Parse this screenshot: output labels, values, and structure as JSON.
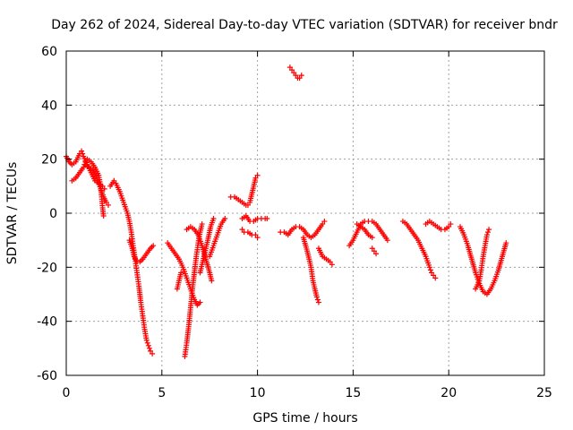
{
  "chart_data": {
    "type": "scatter",
    "title": "Day 262 of 2024, Sidereal Day-to-day VTEC variation (SDTVAR) for receiver bndr",
    "xlabel": "GPS time / hours",
    "ylabel": "SDTVAR / TECUs",
    "xlim": [
      0,
      25
    ],
    "ylim": [
      -60,
      60
    ],
    "xticks": [
      0,
      5,
      10,
      15,
      20,
      25
    ],
    "yticks": [
      -60,
      -40,
      -20,
      0,
      20,
      40,
      60
    ],
    "xtick_labels": [
      "0",
      "5",
      "10",
      "15",
      "20",
      "25"
    ],
    "ytick_labels": [
      "-60",
      "-40",
      "-20",
      "0",
      "20",
      "40",
      "60"
    ],
    "grid": true,
    "marker": "plus",
    "color": "#ff0000",
    "segments": [
      {
        "name": "arc-01",
        "points": [
          [
            0.0,
            21
          ],
          [
            0.15,
            19
          ],
          [
            0.3,
            18
          ],
          [
            0.5,
            19
          ],
          [
            0.7,
            22
          ],
          [
            0.8,
            23
          ],
          [
            0.9,
            21
          ],
          [
            1.1,
            18
          ],
          [
            1.3,
            15
          ],
          [
            1.5,
            12
          ],
          [
            1.7,
            11
          ],
          [
            1.9,
            10
          ],
          [
            2.0,
            9
          ]
        ]
      },
      {
        "name": "arc-02",
        "points": [
          [
            0.3,
            12
          ],
          [
            0.5,
            13
          ],
          [
            0.7,
            15
          ],
          [
            0.9,
            17
          ],
          [
            1.0,
            19
          ],
          [
            1.1,
            20
          ],
          [
            1.3,
            19
          ],
          [
            1.5,
            17
          ],
          [
            1.7,
            14
          ],
          [
            1.8,
            10
          ],
          [
            1.85,
            6
          ],
          [
            1.9,
            2
          ],
          [
            1.95,
            -1
          ]
        ]
      },
      {
        "name": "arc-03",
        "points": [
          [
            1.0,
            18
          ],
          [
            1.2,
            17
          ],
          [
            1.4,
            16
          ],
          [
            1.6,
            13
          ],
          [
            1.8,
            9
          ],
          [
            1.95,
            6
          ],
          [
            2.1,
            4
          ],
          [
            2.2,
            3
          ]
        ]
      },
      {
        "name": "arc-04",
        "points": [
          [
            2.3,
            10
          ],
          [
            2.5,
            12
          ],
          [
            2.6,
            11
          ],
          [
            2.8,
            8
          ],
          [
            3.0,
            4
          ],
          [
            3.2,
            0
          ],
          [
            3.3,
            -3
          ],
          [
            3.4,
            -7
          ],
          [
            3.5,
            -12
          ],
          [
            3.6,
            -17
          ],
          [
            3.7,
            -22
          ],
          [
            3.8,
            -27
          ],
          [
            3.9,
            -33
          ],
          [
            4.0,
            -38
          ],
          [
            4.1,
            -43
          ],
          [
            4.2,
            -47
          ],
          [
            4.3,
            -49
          ],
          [
            4.4,
            -51
          ],
          [
            4.5,
            -52
          ]
        ]
      },
      {
        "name": "arc-05",
        "points": [
          [
            3.3,
            -10
          ],
          [
            3.45,
            -13
          ],
          [
            3.55,
            -16
          ],
          [
            3.7,
            -18
          ],
          [
            3.85,
            -18
          ],
          [
            4.0,
            -17
          ],
          [
            4.2,
            -15
          ],
          [
            4.4,
            -13
          ],
          [
            4.55,
            -12
          ]
        ]
      },
      {
        "name": "arc-06",
        "points": [
          [
            5.3,
            -11
          ],
          [
            5.5,
            -13
          ],
          [
            5.7,
            -15
          ],
          [
            5.9,
            -17
          ],
          [
            6.1,
            -20
          ],
          [
            6.3,
            -24
          ],
          [
            6.5,
            -28
          ],
          [
            6.7,
            -32
          ],
          [
            6.85,
            -34
          ],
          [
            7.0,
            -33
          ]
        ]
      },
      {
        "name": "arc-07",
        "points": [
          [
            5.8,
            -28
          ],
          [
            5.9,
            -25
          ],
          [
            6.0,
            -22
          ]
        ]
      },
      {
        "name": "arc-08",
        "points": [
          [
            6.2,
            -53
          ],
          [
            6.3,
            -48
          ],
          [
            6.4,
            -42
          ],
          [
            6.5,
            -35
          ],
          [
            6.6,
            -28
          ],
          [
            6.7,
            -22
          ],
          [
            6.8,
            -16
          ],
          [
            6.9,
            -11
          ],
          [
            7.0,
            -7
          ],
          [
            7.1,
            -4
          ]
        ]
      },
      {
        "name": "arc-09",
        "points": [
          [
            6.3,
            -6
          ],
          [
            6.5,
            -5
          ],
          [
            6.7,
            -6
          ],
          [
            6.9,
            -8
          ],
          [
            7.1,
            -12
          ],
          [
            7.3,
            -17
          ],
          [
            7.5,
            -22
          ],
          [
            7.6,
            -25
          ]
        ]
      },
      {
        "name": "arc-10",
        "points": [
          [
            7.0,
            -22
          ],
          [
            7.2,
            -16
          ],
          [
            7.4,
            -10
          ],
          [
            7.55,
            -5
          ],
          [
            7.7,
            -2
          ]
        ]
      },
      {
        "name": "arc-11",
        "points": [
          [
            7.5,
            -16
          ],
          [
            7.7,
            -12
          ],
          [
            7.9,
            -8
          ],
          [
            8.1,
            -4
          ],
          [
            8.3,
            -2
          ]
        ]
      },
      {
        "name": "arc-12",
        "points": [
          [
            8.6,
            6
          ],
          [
            8.8,
            6
          ],
          [
            9.0,
            5
          ],
          [
            9.2,
            4
          ],
          [
            9.4,
            3
          ],
          [
            9.5,
            3
          ],
          [
            9.6,
            4
          ],
          [
            9.7,
            7
          ],
          [
            9.8,
            10
          ],
          [
            9.9,
            13
          ],
          [
            10.0,
            14
          ]
        ]
      },
      {
        "name": "arc-13",
        "points": [
          [
            9.2,
            -2
          ],
          [
            9.4,
            -1
          ],
          [
            9.6,
            -3
          ],
          [
            9.8,
            -3
          ],
          [
            10.0,
            -2
          ],
          [
            10.2,
            -2
          ],
          [
            10.4,
            -2
          ],
          [
            10.5,
            -2
          ]
        ]
      },
      {
        "name": "arc-14",
        "points": [
          [
            9.2,
            -6
          ],
          [
            9.3,
            -7
          ],
          [
            9.5,
            -7
          ],
          [
            9.7,
            -8
          ],
          [
            9.9,
            -8
          ],
          [
            10.0,
            -9
          ]
        ]
      },
      {
        "name": "arc-15",
        "points": [
          [
            11.7,
            54
          ],
          [
            11.8,
            53
          ],
          [
            11.9,
            52
          ],
          [
            12.0,
            51
          ],
          [
            12.1,
            50
          ],
          [
            12.2,
            50
          ],
          [
            12.3,
            51
          ]
        ]
      },
      {
        "name": "arc-16",
        "points": [
          [
            11.2,
            -7
          ],
          [
            11.4,
            -7
          ],
          [
            11.6,
            -8
          ],
          [
            11.8,
            -6
          ],
          [
            12.0,
            -5
          ],
          [
            12.2,
            -5
          ],
          [
            12.4,
            -6
          ],
          [
            12.6,
            -8
          ],
          [
            12.8,
            -9
          ],
          [
            13.0,
            -8
          ],
          [
            13.2,
            -6
          ],
          [
            13.4,
            -4
          ],
          [
            13.5,
            -3
          ]
        ]
      },
      {
        "name": "arc-17",
        "points": [
          [
            12.4,
            -9
          ],
          [
            12.6,
            -14
          ],
          [
            12.8,
            -20
          ],
          [
            12.9,
            -25
          ],
          [
            13.0,
            -28
          ],
          [
            13.1,
            -31
          ],
          [
            13.2,
            -33
          ]
        ]
      },
      {
        "name": "arc-18",
        "points": [
          [
            13.2,
            -13
          ],
          [
            13.4,
            -16
          ],
          [
            13.6,
            -17
          ],
          [
            13.8,
            -18
          ],
          [
            13.9,
            -19
          ]
        ]
      },
      {
        "name": "arc-19",
        "points": [
          [
            14.8,
            -12
          ],
          [
            15.0,
            -10
          ],
          [
            15.2,
            -7
          ],
          [
            15.4,
            -4
          ],
          [
            15.6,
            -3
          ],
          [
            15.8,
            -3
          ],
          [
            16.0,
            -3
          ],
          [
            16.2,
            -4
          ],
          [
            16.4,
            -6
          ],
          [
            16.6,
            -8
          ],
          [
            16.8,
            -10
          ]
        ]
      },
      {
        "name": "arc-20",
        "points": [
          [
            15.2,
            -4
          ],
          [
            15.4,
            -5
          ],
          [
            15.6,
            -6
          ],
          [
            15.8,
            -8
          ],
          [
            16.0,
            -9
          ]
        ]
      },
      {
        "name": "arc-21",
        "points": [
          [
            16.0,
            -13
          ],
          [
            16.1,
            -14
          ],
          [
            16.2,
            -15
          ]
        ]
      },
      {
        "name": "arc-22",
        "points": [
          [
            17.6,
            -3
          ],
          [
            17.8,
            -4
          ],
          [
            18.0,
            -6
          ],
          [
            18.2,
            -8
          ],
          [
            18.4,
            -10
          ],
          [
            18.6,
            -13
          ],
          [
            18.8,
            -16
          ],
          [
            19.0,
            -20
          ],
          [
            19.1,
            -22
          ],
          [
            19.2,
            -23
          ],
          [
            19.3,
            -24
          ]
        ]
      },
      {
        "name": "arc-23",
        "points": [
          [
            18.8,
            -4
          ],
          [
            19.0,
            -3
          ],
          [
            19.2,
            -4
          ],
          [
            19.4,
            -5
          ],
          [
            19.6,
            -6
          ],
          [
            19.8,
            -6
          ],
          [
            20.0,
            -5
          ],
          [
            20.1,
            -4
          ]
        ]
      },
      {
        "name": "arc-24",
        "points": [
          [
            20.6,
            -5
          ],
          [
            20.8,
            -8
          ],
          [
            21.0,
            -12
          ],
          [
            21.2,
            -17
          ],
          [
            21.4,
            -22
          ],
          [
            21.6,
            -26
          ],
          [
            21.8,
            -29
          ],
          [
            22.0,
            -30
          ],
          [
            22.2,
            -28
          ],
          [
            22.4,
            -25
          ],
          [
            22.6,
            -21
          ],
          [
            22.8,
            -16
          ],
          [
            23.0,
            -11
          ]
        ]
      },
      {
        "name": "arc-25",
        "points": [
          [
            21.4,
            -28
          ],
          [
            21.6,
            -25
          ],
          [
            21.7,
            -21
          ],
          [
            21.8,
            -16
          ],
          [
            21.9,
            -12
          ],
          [
            22.0,
            -8
          ],
          [
            22.1,
            -6
          ]
        ]
      }
    ]
  }
}
